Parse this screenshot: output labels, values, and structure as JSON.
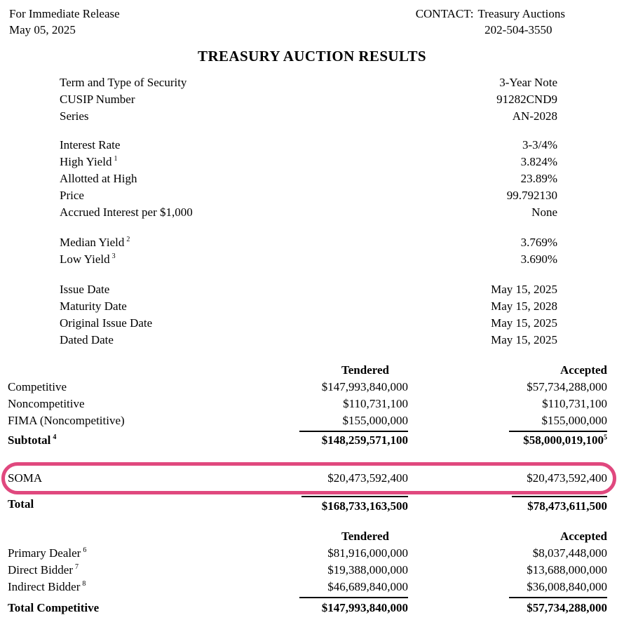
{
  "document": {
    "release_label": "For Immediate Release",
    "release_date": "May 05, 2025",
    "contact_label": "CONTACT:",
    "contact_name": "Treasury Auctions",
    "contact_phone": "202-504-3550",
    "title": "TREASURY AUCTION RESULTS"
  },
  "security_info": [
    {
      "label": "Term and Type of Security",
      "value": "3-Year Note"
    },
    {
      "label": "CUSIP Number",
      "value": "91282CND9"
    },
    {
      "label": "Series",
      "value": "AN-2028"
    }
  ],
  "auction_stats": [
    {
      "label": "Interest Rate",
      "value": "3-3/4%"
    },
    {
      "label": "High Yield",
      "sup": "1",
      "value": "3.824%"
    },
    {
      "label": "Allotted at High",
      "value": "23.89%"
    },
    {
      "label": "Price",
      "value": "99.792130"
    },
    {
      "label": "Accrued Interest per $1,000",
      "value": "None"
    }
  ],
  "yield_stats": [
    {
      "label": "Median Yield",
      "sup": "2",
      "value": "3.769%"
    },
    {
      "label": "Low Yield",
      "sup": "3",
      "value": "3.690%"
    }
  ],
  "date_info": [
    {
      "label": "Issue Date",
      "value": "May 15, 2025"
    },
    {
      "label": "Maturity Date",
      "value": "May 15, 2028"
    },
    {
      "label": "Original Issue Date",
      "value": "May 15, 2025"
    },
    {
      "label": "Dated Date",
      "value": "May 15, 2025"
    }
  ],
  "tender_table": {
    "tendered_header": "Tendered",
    "accepted_header": "Accepted",
    "rows": [
      {
        "label": "Competitive",
        "tendered": "$147,993,840,000",
        "accepted": "$57,734,288,000"
      },
      {
        "label": "Noncompetitive",
        "tendered": "$110,731,100",
        "accepted": "$110,731,100"
      },
      {
        "label": "FIMA (Noncompetitive)",
        "tendered": "$155,000,000",
        "accepted": "$155,000,000"
      },
      {
        "label": "Subtotal",
        "label_sup": "4",
        "tendered": "$148,259,571,100",
        "accepted": "$58,000,019,100",
        "accepted_sup": "5"
      },
      {
        "label": "SOMA",
        "tendered": "$20,473,592,400",
        "accepted": "$20,473,592,400"
      },
      {
        "label": "Total",
        "tendered": "$168,733,163,500",
        "accepted": "$78,473,611,500"
      }
    ]
  },
  "competitive_table": {
    "tendered_header": "Tendered",
    "accepted_header": "Accepted",
    "rows": [
      {
        "label": "Primary Dealer",
        "label_sup": "6",
        "tendered": "$81,916,000,000",
        "accepted": "$8,037,448,000"
      },
      {
        "label": "Direct Bidder",
        "label_sup": "7",
        "tendered": "$19,388,000,000",
        "accepted": "$13,688,000,000"
      },
      {
        "label": "Indirect Bidder",
        "label_sup": "8",
        "tendered": "$46,689,840,000",
        "accepted": "$36,008,840,000"
      },
      {
        "label": "Total Competitive",
        "tendered": "$147,993,840,000",
        "accepted": "$57,734,288,000"
      }
    ]
  },
  "annotation": {
    "type": "highlight-box",
    "highlighted_row": "SOMA",
    "color": "#e0487e"
  }
}
